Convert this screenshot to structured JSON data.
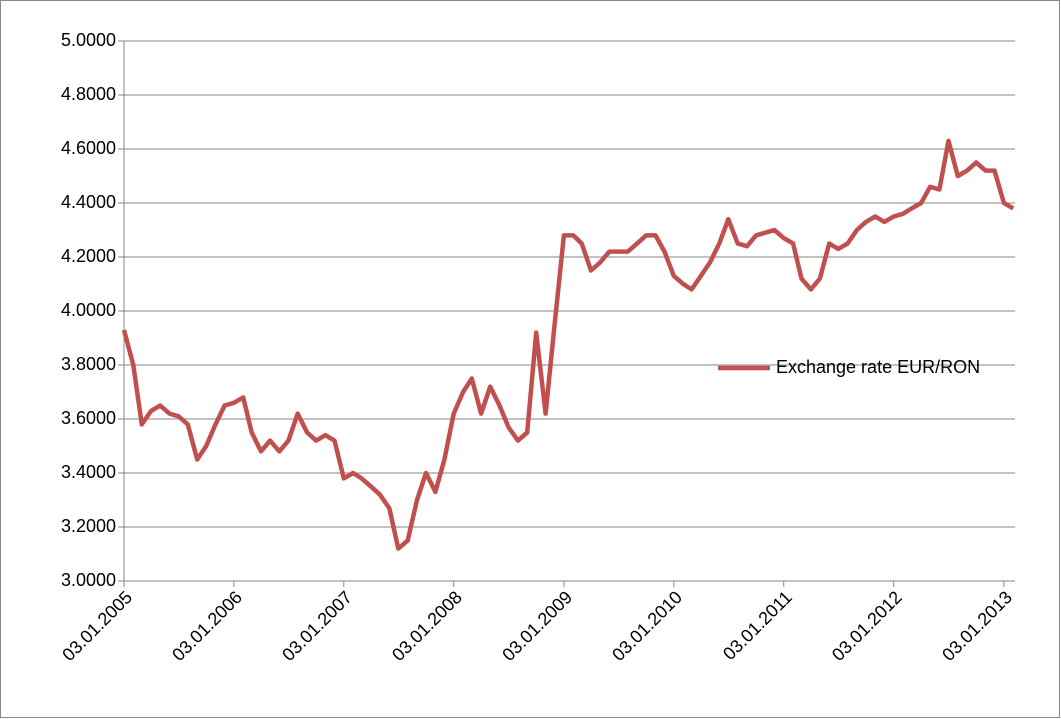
{
  "chart_data": {
    "type": "line",
    "x": [
      "03.01.2005",
      "03.02.2005",
      "03.03.2005",
      "03.04.2005",
      "03.05.2005",
      "03.06.2005",
      "03.07.2005",
      "03.08.2005",
      "03.09.2005",
      "03.10.2005",
      "03.11.2005",
      "03.12.2005",
      "03.01.2006",
      "03.02.2006",
      "03.03.2006",
      "03.04.2006",
      "03.05.2006",
      "03.06.2006",
      "03.07.2006",
      "03.08.2006",
      "03.09.2006",
      "03.10.2006",
      "03.11.2006",
      "03.12.2006",
      "03.01.2007",
      "03.02.2007",
      "03.03.2007",
      "03.04.2007",
      "03.05.2007",
      "03.06.2007",
      "03.07.2007",
      "03.08.2007",
      "03.09.2007",
      "03.10.2007",
      "03.11.2007",
      "03.12.2007",
      "03.01.2008",
      "03.02.2008",
      "03.03.2008",
      "03.04.2008",
      "03.05.2008",
      "03.06.2008",
      "03.07.2008",
      "03.08.2008",
      "03.09.2008",
      "03.10.2008",
      "03.11.2008",
      "03.12.2008",
      "03.01.2009",
      "03.02.2009",
      "03.03.2009",
      "03.04.2009",
      "03.05.2009",
      "03.06.2009",
      "03.07.2009",
      "03.08.2009",
      "03.09.2009",
      "03.10.2009",
      "03.11.2009",
      "03.12.2009",
      "03.01.2010",
      "03.02.2010",
      "03.03.2010",
      "03.04.2010",
      "03.05.2010",
      "03.06.2010",
      "03.07.2010",
      "03.08.2010",
      "03.09.2010",
      "03.10.2010",
      "03.11.2010",
      "03.12.2010",
      "03.01.2011",
      "03.02.2011",
      "03.03.2011",
      "03.04.2011",
      "03.05.2011",
      "03.06.2011",
      "03.07.2011",
      "03.08.2011",
      "03.09.2011",
      "03.10.2011",
      "03.11.2011",
      "03.12.2011",
      "03.01.2012",
      "03.02.2012",
      "03.03.2012",
      "03.04.2012",
      "03.05.2012",
      "03.06.2012",
      "03.07.2012",
      "03.08.2012",
      "03.09.2012",
      "03.10.2012",
      "03.11.2012",
      "03.12.2012",
      "03.01.2013",
      "03.02.2013"
    ],
    "series": [
      {
        "name": "Exchange rate EUR/RON",
        "color": "#c0504d",
        "values": [
          3.93,
          3.8,
          3.58,
          3.63,
          3.65,
          3.62,
          3.61,
          3.58,
          3.45,
          3.5,
          3.58,
          3.65,
          3.66,
          3.68,
          3.55,
          3.48,
          3.52,
          3.48,
          3.52,
          3.62,
          3.55,
          3.52,
          3.54,
          3.52,
          3.38,
          3.4,
          3.38,
          3.35,
          3.32,
          3.27,
          3.12,
          3.15,
          3.3,
          3.4,
          3.33,
          3.45,
          3.62,
          3.7,
          3.75,
          3.62,
          3.72,
          3.65,
          3.57,
          3.52,
          3.55,
          3.92,
          3.62,
          3.95,
          4.28,
          4.28,
          4.25,
          4.15,
          4.18,
          4.22,
          4.22,
          4.22,
          4.25,
          4.28,
          4.28,
          4.22,
          4.13,
          4.1,
          4.08,
          4.13,
          4.18,
          4.25,
          4.34,
          4.25,
          4.24,
          4.28,
          4.29,
          4.3,
          4.27,
          4.25,
          4.12,
          4.08,
          4.12,
          4.25,
          4.23,
          4.25,
          4.3,
          4.33,
          4.35,
          4.33,
          4.35,
          4.36,
          4.38,
          4.4,
          4.46,
          4.45,
          4.63,
          4.5,
          4.52,
          4.55,
          4.52,
          4.52,
          4.4,
          4.38
        ]
      }
    ],
    "xlim": [
      "03.01.2005",
      "09.02.2013"
    ],
    "xticks": [
      "03.01.2005",
      "03.01.2006",
      "03.01.2007",
      "03.01.2008",
      "03.01.2009",
      "03.01.2010",
      "03.01.2011",
      "03.01.2012",
      "03.01.2013"
    ],
    "ylim": [
      3,
      5
    ],
    "yticks": [
      {
        "value": 3,
        "label": "3.0000"
      },
      {
        "value": 3.2,
        "label": "3.2000"
      },
      {
        "value": 3.4,
        "label": "3.4000"
      },
      {
        "value": 3.6,
        "label": "3.6000"
      },
      {
        "value": 3.8,
        "label": "3.8000"
      },
      {
        "value": 4,
        "label": "4.0000"
      },
      {
        "value": 4.2,
        "label": "4.2000"
      },
      {
        "value": 4.4,
        "label": "4.4000"
      },
      {
        "value": 4.6,
        "label": "4.6000"
      },
      {
        "value": 4.8,
        "label": "4.8000"
      },
      {
        "value": 5,
        "label": "5.0000"
      }
    ],
    "grid": true,
    "legend": "right"
  }
}
